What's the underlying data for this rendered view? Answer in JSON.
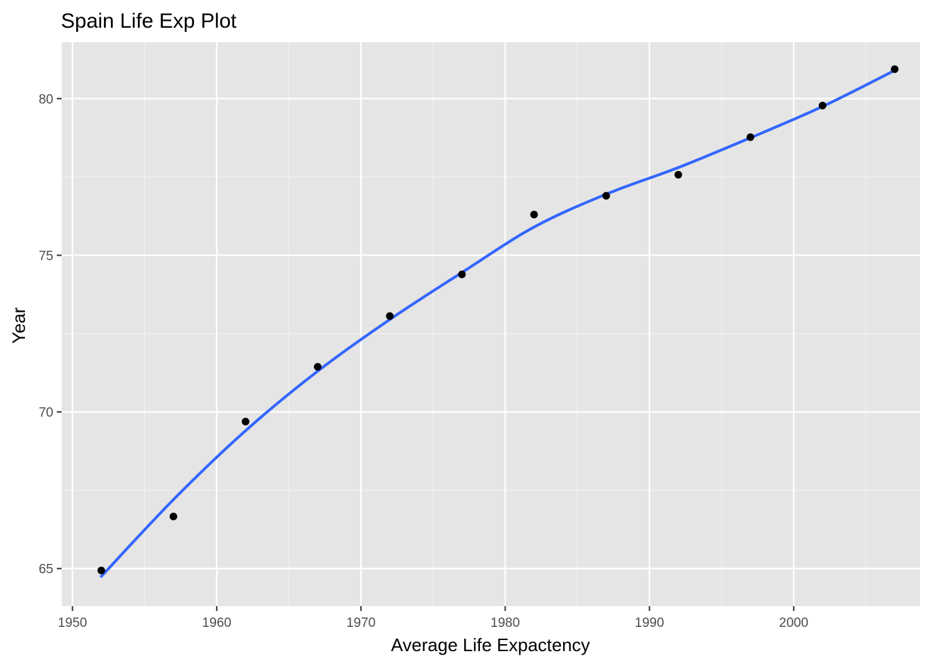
{
  "chart_data": {
    "type": "scatter",
    "title": "Spain Life Exp Plot",
    "xlabel": "Average Life Expactency",
    "ylabel": "Year",
    "xlim": [
      1949.25,
      2008.75
    ],
    "ylim": [
      63.8,
      81.8
    ],
    "x_ticks": [
      1950,
      1960,
      1970,
      1980,
      1990,
      2000
    ],
    "y_ticks": [
      65,
      70,
      75,
      80
    ],
    "grid": true,
    "legend": "none",
    "points": {
      "x": [
        1952,
        1957,
        1962,
        1967,
        1972,
        1977,
        1982,
        1987,
        1992,
        1997,
        2002,
        2007
      ],
      "y": [
        64.94,
        66.66,
        69.69,
        71.44,
        73.06,
        74.39,
        76.3,
        76.9,
        77.57,
        78.77,
        79.78,
        80.94
      ]
    },
    "smooth": {
      "x": [
        1952,
        1957,
        1962,
        1967,
        1972,
        1977,
        1982,
        1987,
        1992,
        1997,
        2002,
        2007
      ],
      "y": [
        64.75,
        67.2,
        69.4,
        71.3,
        72.95,
        74.45,
        75.9,
        76.95,
        77.8,
        78.75,
        79.75,
        80.9
      ]
    },
    "colors": {
      "panel": "#e5e5e5",
      "grid_major": "#ffffff",
      "grid_minor": "#f2f2f2",
      "point": "#000000",
      "line": "#3366ff",
      "tick_label": "#4d4d4d",
      "tick_mark": "#333333"
    }
  }
}
